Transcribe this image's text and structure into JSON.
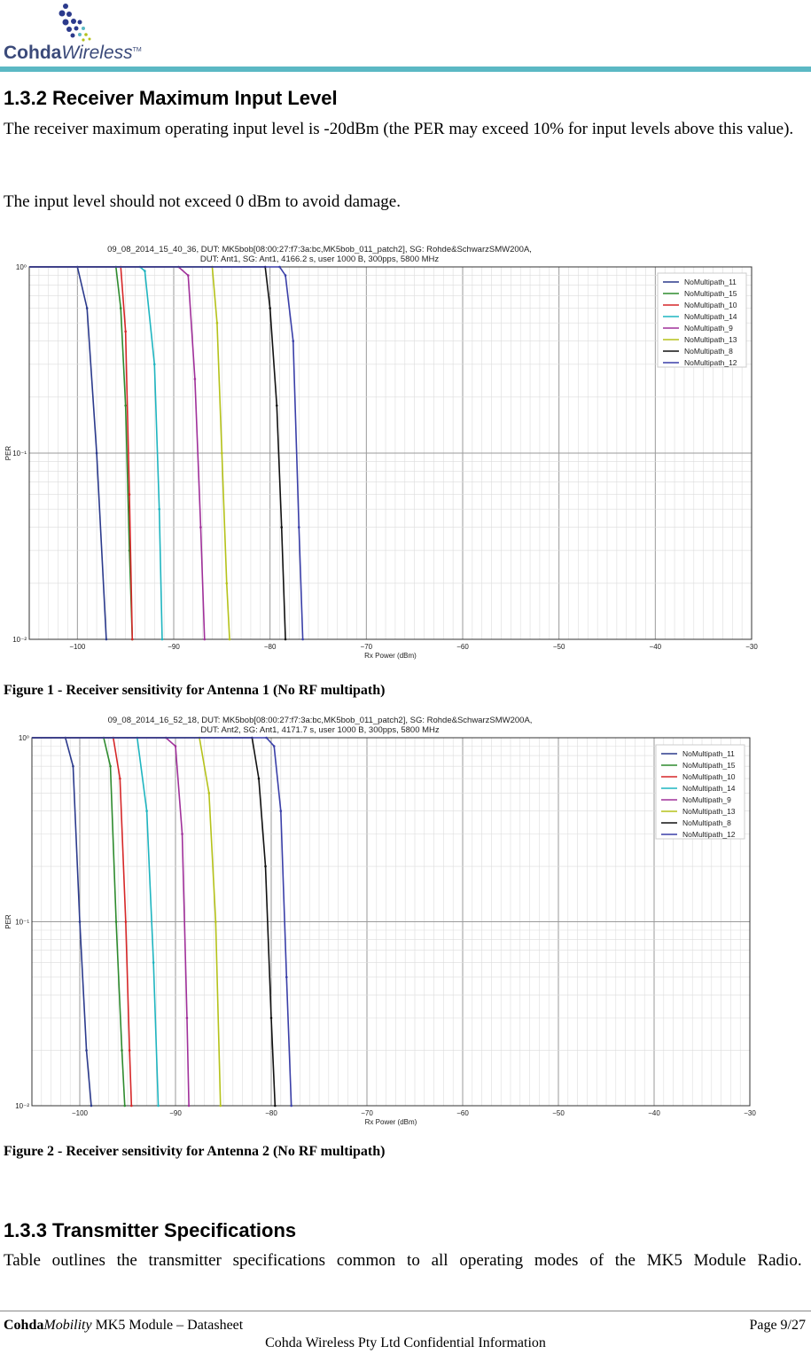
{
  "header": {
    "logo_bold": "Cohda",
    "logo_italic": "Wireless",
    "logo_tm": "TM"
  },
  "section1": {
    "heading": "1.3.2  Receiver Maximum Input Level",
    "para1": "The receiver maximum operating input level is -20dBm (the PER may exceed 10% for input levels above this value).",
    "para2": "The input level should not exceed 0 dBm to avoid damage."
  },
  "figure1": {
    "caption": "Figure 1 - Receiver sensitivity for Antenna 1 (No RF multipath)"
  },
  "figure2": {
    "caption": "Figure 2 - Receiver sensitivity for Antenna 2 (No RF multipath)"
  },
  "section2": {
    "heading": "1.3.3  Transmitter Specifications",
    "para": "Table  outlines the transmitter specifications common to all operating modes of the MK5 Module Radio."
  },
  "footer": {
    "left_brand": "Cohda",
    "left_brand_italic": "Mobility",
    "left_rest": " MK5 Module – Datasheet",
    "right": "Page 9/27",
    "center": "Cohda Wireless Pty Ltd Confidential Information"
  },
  "colors": {
    "accent_bar": "#5bb8c4",
    "NoMultipath_11": "#2b3a8c",
    "NoMultipath_15": "#2e8b2e",
    "NoMultipath_10": "#d62728",
    "NoMultipath_14": "#1fb5c0",
    "NoMultipath_9": "#a0309a",
    "NoMultipath_13": "#b5c21a",
    "NoMultipath_8": "#111111",
    "NoMultipath_12": "#3a3fa8"
  },
  "chart_data": [
    {
      "type": "line",
      "title": "09_08_2014_15_40_36, DUT: MK5bob[08:00:27:f7:3a:bc,MK5bob_011_patch2], SG: Rohde&SchwarzSMW200A,",
      "subtitle": "DUT: Ant1, SG: Ant1, 4166.2 s, user 1000 B, 300pps, 5800 MHz",
      "xlabel": "Rx Power (dBm)",
      "ylabel": "PER",
      "xlim": [
        -105,
        -30
      ],
      "ylim": [
        0.01,
        1
      ],
      "y_scale": "log",
      "grid": true,
      "legend": "top-right",
      "x_ticks": [
        "−100",
        "−90",
        "−80",
        "−70",
        "−60",
        "−50",
        "−40",
        "−30"
      ],
      "y_ticks": [
        "10⁰",
        "10⁻¹",
        "10⁻²"
      ],
      "series": [
        {
          "name": "NoMultipath_11",
          "x": [
            -105,
            -100,
            -99,
            -98,
            -97
          ],
          "y": [
            1,
            1,
            0.6,
            0.1,
            0.01
          ]
        },
        {
          "name": "NoMultipath_15",
          "x": [
            -105,
            -96,
            -95.5,
            -95,
            -94.6,
            -94.3
          ],
          "y": [
            1,
            1,
            0.6,
            0.18,
            0.03,
            0.01
          ]
        },
        {
          "name": "NoMultipath_10",
          "x": [
            -105,
            -95.5,
            -95,
            -94.6,
            -94.3
          ],
          "y": [
            1,
            1,
            0.45,
            0.06,
            0.01
          ]
        },
        {
          "name": "NoMultipath_14",
          "x": [
            -105,
            -93.5,
            -93,
            -92,
            -91.5,
            -91.2
          ],
          "y": [
            1,
            1,
            0.95,
            0.3,
            0.05,
            0.01
          ]
        },
        {
          "name": "NoMultipath_9",
          "x": [
            -105,
            -89.5,
            -88.5,
            -87.8,
            -87.2,
            -86.8
          ],
          "y": [
            1,
            1,
            0.9,
            0.25,
            0.04,
            0.01
          ]
        },
        {
          "name": "NoMultipath_13",
          "x": [
            -105,
            -86,
            -85.5,
            -85,
            -84.5,
            -84.2
          ],
          "y": [
            1,
            1,
            0.5,
            0.1,
            0.02,
            0.01
          ]
        },
        {
          "name": "NoMultipath_8",
          "x": [
            -105,
            -80.5,
            -80,
            -79.3,
            -78.8,
            -78.4
          ],
          "y": [
            1,
            1,
            0.6,
            0.18,
            0.04,
            0.01
          ]
        },
        {
          "name": "NoMultipath_12",
          "x": [
            -105,
            -79,
            -78.4,
            -77.6,
            -77,
            -76.6
          ],
          "y": [
            1,
            1,
            0.9,
            0.4,
            0.04,
            0.01
          ]
        }
      ]
    },
    {
      "type": "line",
      "title": "09_08_2014_16_52_18, DUT: MK5bob[08:00:27:f7:3a:bc,MK5bob_011_patch2], SG: Rohde&SchwarzSMW200A,",
      "subtitle": "DUT: Ant2, SG: Ant1, 4171.7 s, user 1000 B, 300pps, 5800 MHz",
      "xlabel": "Rx Power (dBm)",
      "ylabel": "PER",
      "xlim": [
        -105,
        -30
      ],
      "ylim": [
        0.01,
        1
      ],
      "y_scale": "log",
      "grid": true,
      "legend": "top-right",
      "x_ticks": [
        "−100",
        "−90",
        "−80",
        "−70",
        "−60",
        "−50",
        "−40",
        "−30"
      ],
      "y_ticks": [
        "10⁰",
        "10⁻¹",
        "10⁻²"
      ],
      "series": [
        {
          "name": "NoMultipath_11",
          "x": [
            -105,
            -101.5,
            -100.7,
            -100,
            -99.3,
            -98.8
          ],
          "y": [
            1,
            1,
            0.7,
            0.1,
            0.02,
            0.01
          ]
        },
        {
          "name": "NoMultipath_15",
          "x": [
            -105,
            -97.5,
            -96.8,
            -96.2,
            -95.6,
            -95.3
          ],
          "y": [
            1,
            1,
            0.7,
            0.1,
            0.02,
            0.01
          ]
        },
        {
          "name": "NoMultipath_10",
          "x": [
            -105,
            -96.5,
            -95.8,
            -95.2,
            -94.8,
            -94.6
          ],
          "y": [
            1,
            1,
            0.6,
            0.1,
            0.02,
            0.01
          ]
        },
        {
          "name": "NoMultipath_14",
          "x": [
            -105,
            -94,
            -93,
            -92.3,
            -91.8
          ],
          "y": [
            1,
            1,
            0.4,
            0.06,
            0.01
          ]
        },
        {
          "name": "NoMultipath_9",
          "x": [
            -105,
            -91,
            -90,
            -89.3,
            -88.8,
            -88.6
          ],
          "y": [
            1,
            1,
            0.9,
            0.3,
            0.03,
            0.01
          ]
        },
        {
          "name": "NoMultipath_13",
          "x": [
            -105,
            -87.5,
            -86.5,
            -85.8,
            -85.3
          ],
          "y": [
            1,
            1,
            0.5,
            0.1,
            0.01
          ]
        },
        {
          "name": "NoMultipath_8",
          "x": [
            -105,
            -82,
            -81.3,
            -80.6,
            -80,
            -79.6
          ],
          "y": [
            1,
            1,
            0.6,
            0.2,
            0.03,
            0.01
          ]
        },
        {
          "name": "NoMultipath_12",
          "x": [
            -105,
            -80.5,
            -79.7,
            -79,
            -78.4,
            -77.9
          ],
          "y": [
            1,
            1,
            0.9,
            0.4,
            0.05,
            0.01
          ]
        }
      ]
    }
  ]
}
